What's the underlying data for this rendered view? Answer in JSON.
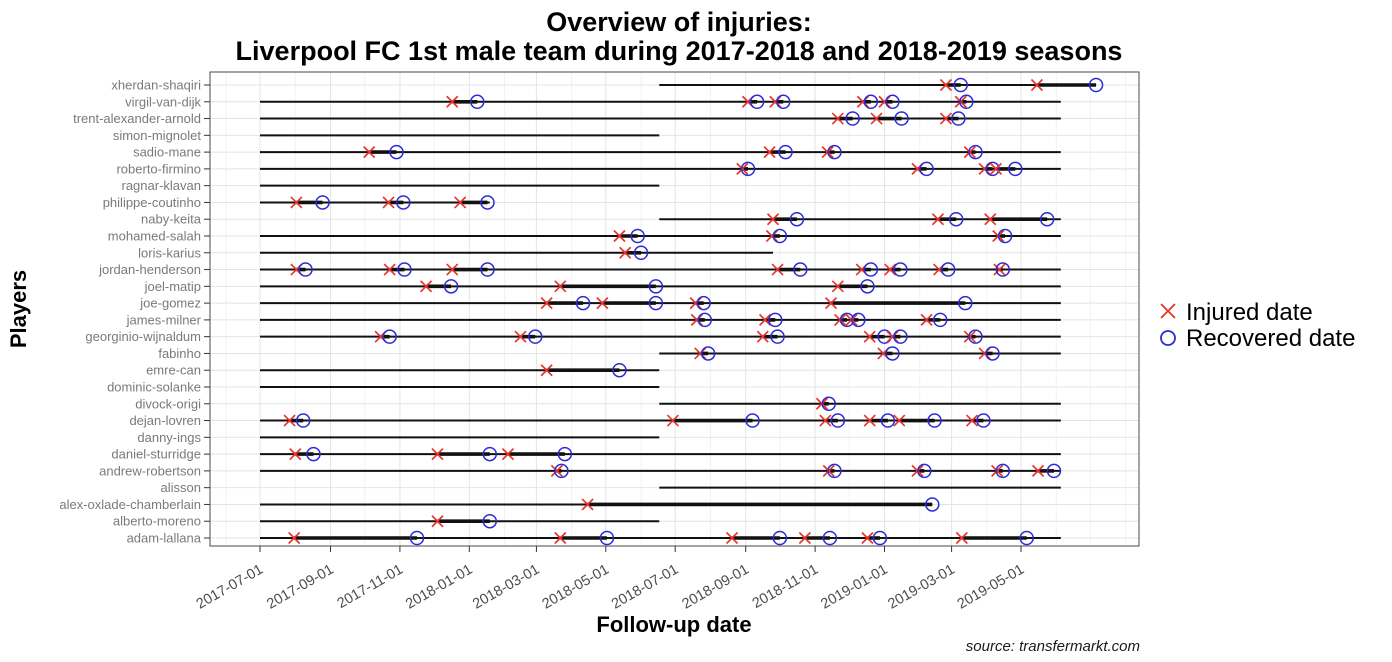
{
  "title": {
    "line1": "Overview of injuries:",
    "line2": "Liverpool FC 1st male team during 2017-2018 and 2018-2019 seasons"
  },
  "axes": {
    "x_label": "Follow-up date",
    "y_label": "Players"
  },
  "caption": "source: transfermarkt.com",
  "legend": {
    "items": [
      {
        "symbol": "cross-icon",
        "label": "Injured date"
      },
      {
        "symbol": "circle-icon",
        "label": "Recovered date"
      }
    ]
  },
  "colors": {
    "injured": "#e8352c",
    "recovered": "#2b2bd6",
    "line": "#111111",
    "grid_major": "#e4e4e4",
    "grid_minor": "#f2f2f2",
    "panel_border": "#4a4a4a",
    "tick": "#333333"
  },
  "chart_data": {
    "type": "scatter",
    "subtype": "injury-timeline",
    "title": "Overview of injuries: Liverpool FC 1st male team during 2017-2018 and 2018-2019 seasons",
    "xlabel": "Follow-up date",
    "ylabel": "Players",
    "grid": true,
    "legend_position": "right",
    "x_ticks": [
      "2017-07-01",
      "2017-09-01",
      "2017-11-01",
      "2018-01-01",
      "2018-03-01",
      "2018-05-01",
      "2018-07-01",
      "2018-09-01",
      "2018-11-01",
      "2019-01-01",
      "2019-03-01",
      "2019-05-01"
    ],
    "x_minor_ticks": [
      "2017-06-01",
      "2017-08-01",
      "2017-10-01",
      "2017-12-01",
      "2018-02-01",
      "2018-04-01",
      "2018-06-01",
      "2018-08-01",
      "2018-10-01",
      "2018-12-01",
      "2019-02-01",
      "2019-04-01",
      "2019-06-01",
      "2019-07-01",
      "2019-08-01"
    ],
    "x_range_shown": [
      "2017-05-18",
      "2019-08-12"
    ],
    "players": [
      {
        "name": "xherdan-shaqiri",
        "lines": [
          [
            "2018-06-17",
            "2019-07-06"
          ]
        ],
        "injuries": [
          [
            "2019-02-24",
            "2019-03-09"
          ],
          [
            "2019-05-15",
            "2019-07-06"
          ]
        ]
      },
      {
        "name": "virgil-van-dijk",
        "lines": [
          [
            "2017-07-01",
            "2019-06-05"
          ]
        ],
        "injuries": [
          [
            "2017-12-17",
            "2018-01-08"
          ],
          [
            "2018-09-03",
            "2018-09-11"
          ],
          [
            "2018-09-27",
            "2018-10-04"
          ],
          [
            "2018-12-13",
            "2018-12-20"
          ],
          [
            "2019-01-01",
            "2019-01-08"
          ],
          [
            "2019-03-09",
            "2019-03-14"
          ]
        ]
      },
      {
        "name": "trent-alexander-arnold",
        "lines": [
          [
            "2017-07-01",
            "2019-06-05"
          ]
        ],
        "injuries": [
          [
            "2018-11-21",
            "2018-12-04"
          ],
          [
            "2018-12-25",
            "2019-01-16"
          ],
          [
            "2019-02-24",
            "2019-03-07"
          ]
        ]
      },
      {
        "name": "simon-mignolet",
        "lines": [
          [
            "2017-07-01",
            "2018-06-17"
          ]
        ],
        "injuries": []
      },
      {
        "name": "sadio-mane",
        "lines": [
          [
            "2017-07-01",
            "2019-06-05"
          ]
        ],
        "injuries": [
          [
            "2017-10-05",
            "2017-10-29"
          ],
          [
            "2018-09-22",
            "2018-10-06"
          ],
          [
            "2018-11-12",
            "2018-11-18"
          ],
          [
            "2019-03-17",
            "2019-03-22"
          ]
        ]
      },
      {
        "name": "roberto-firmino",
        "lines": [
          [
            "2017-07-01",
            "2019-06-05"
          ]
        ],
        "injuries": [
          [
            "2018-08-29",
            "2018-09-03"
          ],
          [
            "2019-01-30",
            "2019-02-07"
          ],
          [
            "2019-03-30",
            "2019-04-06"
          ],
          [
            "2019-04-09",
            "2019-04-26"
          ]
        ]
      },
      {
        "name": "ragnar-klavan",
        "lines": [
          [
            "2017-07-01",
            "2018-06-17"
          ]
        ],
        "injuries": []
      },
      {
        "name": "philippe-coutinho",
        "lines": [
          [
            "2017-07-01",
            "2018-01-19"
          ]
        ],
        "injuries": [
          [
            "2017-08-02",
            "2017-08-25"
          ],
          [
            "2017-10-22",
            "2017-11-04"
          ],
          [
            "2017-12-24",
            "2018-01-17"
          ]
        ]
      },
      {
        "name": "naby-keita",
        "lines": [
          [
            "2018-06-17",
            "2019-06-05"
          ]
        ],
        "injuries": [
          [
            "2018-09-25",
            "2018-10-16"
          ],
          [
            "2019-02-17",
            "2019-03-05"
          ],
          [
            "2019-04-04",
            "2019-05-24"
          ]
        ]
      },
      {
        "name": "mohamed-salah",
        "lines": [
          [
            "2017-07-01",
            "2019-06-05"
          ]
        ],
        "injuries": [
          [
            "2018-05-13",
            "2018-05-29"
          ],
          [
            "2018-09-24",
            "2018-10-01"
          ],
          [
            "2019-04-11",
            "2019-04-17"
          ]
        ]
      },
      {
        "name": "loris-karius",
        "lines": [
          [
            "2017-07-01",
            "2018-09-25"
          ]
        ],
        "injuries": [
          [
            "2018-05-18",
            "2018-06-01"
          ]
        ]
      },
      {
        "name": "jordan-henderson",
        "lines": [
          [
            "2017-07-01",
            "2019-06-05"
          ]
        ],
        "injuries": [
          [
            "2017-08-02",
            "2017-08-10"
          ],
          [
            "2017-10-23",
            "2017-11-05"
          ],
          [
            "2017-12-17",
            "2018-01-17"
          ],
          [
            "2018-09-29",
            "2018-10-19"
          ],
          [
            "2018-12-12",
            "2018-12-20"
          ],
          [
            "2019-01-06",
            "2019-01-15"
          ],
          [
            "2019-02-18",
            "2019-02-26"
          ],
          [
            "2019-04-12",
            "2019-04-15"
          ]
        ]
      },
      {
        "name": "joel-matip",
        "lines": [
          [
            "2017-07-01",
            "2019-06-05"
          ]
        ],
        "injuries": [
          [
            "2017-11-24",
            "2017-12-16"
          ],
          [
            "2018-03-22",
            "2018-06-14"
          ],
          [
            "2018-11-21",
            "2018-12-17"
          ]
        ]
      },
      {
        "name": "joe-gomez",
        "lines": [
          [
            "2017-07-01",
            "2019-06-05"
          ]
        ],
        "injuries": [
          [
            "2018-03-10",
            "2018-04-11"
          ],
          [
            "2018-04-28",
            "2018-06-14"
          ],
          [
            "2018-07-19",
            "2018-07-26"
          ],
          [
            "2018-11-15",
            "2019-03-13"
          ]
        ]
      },
      {
        "name": "james-milner",
        "lines": [
          [
            "2017-07-01",
            "2019-06-05"
          ]
        ],
        "injuries": [
          [
            "2018-07-20",
            "2018-07-27"
          ],
          [
            "2018-09-18",
            "2018-09-27"
          ],
          [
            "2018-11-23",
            "2018-11-29"
          ],
          [
            "2018-12-03",
            "2018-12-09"
          ],
          [
            "2019-02-07",
            "2019-02-19"
          ]
        ]
      },
      {
        "name": "georginio-wijnaldum",
        "lines": [
          [
            "2017-07-01",
            "2019-06-05"
          ]
        ],
        "injuries": [
          [
            "2017-10-15",
            "2017-10-23"
          ],
          [
            "2018-02-15",
            "2018-02-28"
          ],
          [
            "2018-09-16",
            "2018-09-29"
          ],
          [
            "2018-12-19",
            "2019-01-01"
          ],
          [
            "2019-01-08",
            "2019-01-15"
          ],
          [
            "2019-03-17",
            "2019-03-22"
          ]
        ]
      },
      {
        "name": "fabinho",
        "lines": [
          [
            "2018-06-17",
            "2019-06-05"
          ]
        ],
        "injuries": [
          [
            "2018-07-23",
            "2018-07-30"
          ],
          [
            "2018-12-31",
            "2019-01-08"
          ],
          [
            "2019-03-30",
            "2019-04-06"
          ]
        ]
      },
      {
        "name": "emre-can",
        "lines": [
          [
            "2017-07-01",
            "2018-06-17"
          ]
        ],
        "injuries": [
          [
            "2018-03-10",
            "2018-05-13"
          ]
        ]
      },
      {
        "name": "dominic-solanke",
        "lines": [
          [
            "2017-07-01",
            "2018-06-17"
          ]
        ],
        "injuries": []
      },
      {
        "name": "divock-origi",
        "lines": [
          [
            "2018-06-17",
            "2019-06-05"
          ]
        ],
        "injuries": [
          [
            "2018-11-07",
            "2018-11-13"
          ]
        ]
      },
      {
        "name": "dejan-lovren",
        "lines": [
          [
            "2017-07-01",
            "2019-06-05"
          ]
        ],
        "injuries": [
          [
            "2017-07-27",
            "2017-08-08"
          ],
          [
            "2018-06-29",
            "2018-09-07"
          ],
          [
            "2018-11-10",
            "2018-11-21"
          ],
          [
            "2018-12-19",
            "2019-01-04"
          ],
          [
            "2019-01-14",
            "2019-02-14"
          ],
          [
            "2019-03-19",
            "2019-03-29"
          ]
        ]
      },
      {
        "name": "danny-ings",
        "lines": [
          [
            "2017-07-01",
            "2018-06-17"
          ]
        ],
        "injuries": []
      },
      {
        "name": "daniel-sturridge",
        "lines": [
          [
            "2017-07-01",
            "2019-06-05"
          ]
        ],
        "injuries": [
          [
            "2017-08-01",
            "2017-08-17"
          ],
          [
            "2017-12-04",
            "2018-01-19"
          ],
          [
            "2018-02-04",
            "2018-03-26"
          ]
        ]
      },
      {
        "name": "andrew-robertson",
        "lines": [
          [
            "2017-07-01",
            "2019-06-05"
          ]
        ],
        "injuries": [
          [
            "2018-03-19",
            "2018-03-23"
          ],
          [
            "2018-11-13",
            "2018-11-18"
          ],
          [
            "2019-01-30",
            "2019-02-05"
          ],
          [
            "2019-04-10",
            "2019-04-15"
          ],
          [
            "2019-05-16",
            "2019-05-30"
          ]
        ]
      },
      {
        "name": "alisson",
        "lines": [
          [
            "2018-06-17",
            "2019-06-05"
          ]
        ],
        "injuries": []
      },
      {
        "name": "alex-oxlade-chamberlain",
        "lines": [
          [
            "2017-07-01",
            "2019-02-12"
          ]
        ],
        "injuries": [
          [
            "2018-04-15",
            "2019-02-12"
          ]
        ]
      },
      {
        "name": "alberto-moreno",
        "lines": [
          [
            "2017-07-01",
            "2018-06-17"
          ]
        ],
        "injuries": [
          [
            "2017-12-04",
            "2018-01-19"
          ]
        ]
      },
      {
        "name": "adam-lallana",
        "lines": [
          [
            "2017-07-01",
            "2019-06-05"
          ]
        ],
        "injuries": [
          [
            "2017-07-31",
            "2017-11-16"
          ],
          [
            "2018-03-22",
            "2018-05-02"
          ],
          [
            "2018-08-20",
            "2018-10-01"
          ],
          [
            "2018-10-23",
            "2018-11-14"
          ],
          [
            "2018-12-17",
            "2018-12-28"
          ],
          [
            "2019-03-10",
            "2019-05-06"
          ]
        ]
      }
    ]
  }
}
